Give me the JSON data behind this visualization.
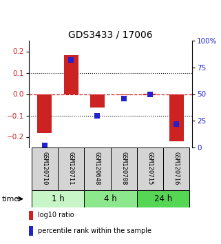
{
  "title": "GDS3433 / 17006",
  "samples": [
    "GSM120710",
    "GSM120711",
    "GSM120648",
    "GSM120708",
    "GSM120715",
    "GSM120716"
  ],
  "log10_ratio": [
    -0.182,
    0.182,
    -0.063,
    -0.005,
    0.003,
    -0.222
  ],
  "percentile_rank": [
    2.0,
    82.0,
    30.0,
    46.0,
    50.0,
    22.0
  ],
  "time_groups": [
    {
      "label": "1 h",
      "indices": [
        0,
        1
      ],
      "color": "#c8f5c8"
    },
    {
      "label": "4 h",
      "indices": [
        2,
        3
      ],
      "color": "#8de88d"
    },
    {
      "label": "24 h",
      "indices": [
        4,
        5
      ],
      "color": "#55d655"
    }
  ],
  "ylim_left": [
    -0.25,
    0.25
  ],
  "ylim_right": [
    0,
    100
  ],
  "yticks_left": [
    -0.2,
    -0.1,
    0,
    0.1,
    0.2
  ],
  "yticks_right": [
    0,
    25,
    50,
    75,
    100
  ],
  "ytick_labels_right": [
    "0",
    "25",
    "50",
    "75",
    "100%"
  ],
  "bar_color": "#cc2222",
  "dot_color": "#2222cc",
  "bar_width": 0.55,
  "dot_size": 40,
  "hline_color": "#cc2222",
  "grid_color": "#000000",
  "legend_label_bar": "log10 ratio",
  "legend_label_dot": "percentile rank within the sample",
  "time_label": "time",
  "sample_box_color": "#d4d4d4",
  "title_fontsize": 10,
  "tick_fontsize": 7.5,
  "label_fontsize": 6.5,
  "time_fontsize": 8,
  "group_fontsize": 8.5,
  "legend_fontsize": 7
}
